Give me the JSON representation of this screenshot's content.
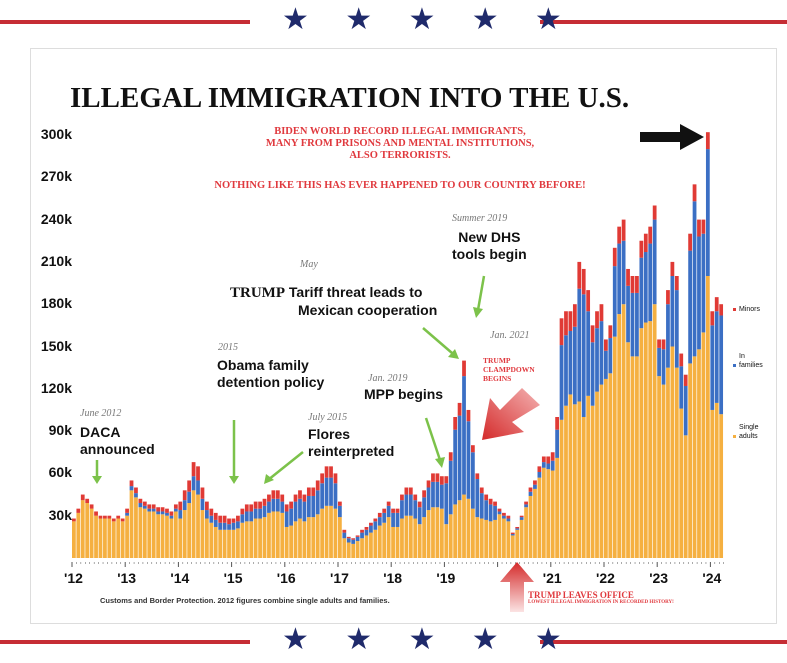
{
  "decor": {
    "stars_top": "★ ★ ★ ★ ★",
    "stars_bottom": "★ ★ ★ ★ ★",
    "star_color": "#1f2a6b",
    "stripe_color": "#c62d35"
  },
  "title": "ILLEGAL IMMIGRATION INTO THE U.S.",
  "callout": {
    "lines": [
      "BIDEN WORLD RECORD ILLEGAL IMMIGRANTS,",
      "MANY FROM PRISONS AND MENTAL INSTITUTIONS,",
      "ALSO TERRORISTS."
    ],
    "tagline": "NOTHING LIKE THIS HAS EVER HAPPENED TO OUR COUNTRY BEFORE!"
  },
  "annotations": {
    "daca": {
      "date": "June 2012",
      "text1": "DACA",
      "text2": "announced"
    },
    "obama": {
      "date": "2015",
      "text1": "Obama family",
      "text2": "detention policy"
    },
    "flores": {
      "date": "July 2015",
      "text1": "Flores",
      "text2": "reinterpreted"
    },
    "tariff": {
      "date": "May",
      "prefix": "TRUMP",
      "text1": "Tariff threat leads to",
      "text2": "Mexican cooperation"
    },
    "dhs": {
      "date": "Summer 2019",
      "text1": "New DHS",
      "text2": "tools begin"
    },
    "mpp": {
      "date": "Jan. 2019",
      "text1": "MPP begins"
    },
    "jan2021": {
      "date": "Jan. 2021"
    },
    "clampdown": {
      "l1": "TRUMP",
      "l2": "CLAMPDOWN",
      "l3": "BEGINS"
    },
    "leaves": {
      "l1": "TRUMP LEAVES OFFICE",
      "l2": "LOWEST ILLEGAL IMMIGRATION IN RECORDED HISTORY!"
    }
  },
  "source": "Customs and Border Protection. 2012 figures combine single adults and families.",
  "chart_data": {
    "type": "bar",
    "stacked": true,
    "title": "ILLEGAL IMMIGRATION INTO THE U.S.",
    "xlabel": "",
    "ylabel": "",
    "ylim": [
      0,
      300
    ],
    "y_unit": "thousands per month",
    "yticks": [
      30,
      60,
      90,
      120,
      150,
      180,
      210,
      240,
      270,
      300
    ],
    "ytick_labels": [
      "30k",
      "60k",
      "90k",
      "120k",
      "150k",
      "180k",
      "210k",
      "240k",
      "270k",
      "300k"
    ],
    "xtick_labels": [
      "'12",
      "'13",
      "'14",
      "'15",
      "'16",
      "'17",
      "'18",
      "'19",
      "'21",
      "'22",
      "'23",
      "'24"
    ],
    "xtick_years": [
      2012,
      2013,
      2014,
      2015,
      2016,
      2017,
      2018,
      2019,
      2021,
      2022,
      2023,
      2024
    ],
    "start": "2012-01",
    "grid": false,
    "legend_position": "right",
    "colors": {
      "single": "#f5b041",
      "families": "#3b6fc4",
      "minors": "#e03a35"
    },
    "series": [
      {
        "name": "Single adults",
        "key": "single",
        "values": [
          26,
          32,
          41,
          39,
          35,
          30,
          28,
          28,
          28,
          26,
          28,
          26,
          30,
          48,
          43,
          36,
          35,
          33,
          33,
          31,
          31,
          30,
          28,
          33,
          28,
          34,
          39,
          48,
          45,
          34,
          28,
          25,
          22,
          20,
          20,
          20,
          20,
          21,
          25,
          26,
          26,
          28,
          28,
          29,
          32,
          33,
          33,
          32,
          22,
          23,
          26,
          28,
          26,
          29,
          29,
          31,
          35,
          37,
          37,
          35,
          29,
          14,
          11,
          10,
          12,
          14,
          16,
          18,
          20,
          23,
          25,
          29,
          22,
          22,
          28,
          30,
          30,
          28,
          24,
          29,
          34,
          36,
          36,
          35,
          24,
          31,
          38,
          41,
          45,
          42,
          35,
          29,
          28,
          27,
          26,
          27,
          31,
          28,
          26,
          16,
          20,
          27,
          36,
          44,
          49,
          57,
          64,
          63,
          62,
          71,
          98,
          108,
          116,
          109,
          111,
          100,
          115,
          108,
          118,
          123,
          127,
          131,
          157,
          173,
          180,
          153,
          143,
          143,
          163,
          167,
          168,
          180,
          129,
          123,
          135,
          150,
          135,
          106,
          87,
          138,
          143,
          148,
          160,
          200,
          105,
          110,
          102
        ]
      },
      {
        "name": "In families",
        "key": "families",
        "values": [
          0,
          0,
          0,
          0,
          0,
          0,
          0,
          0,
          0,
          0,
          0,
          0,
          2,
          3,
          3,
          3,
          2,
          2,
          2,
          2,
          2,
          2,
          2,
          2,
          6,
          7,
          8,
          10,
          10,
          8,
          6,
          5,
          5,
          5,
          5,
          4,
          5,
          5,
          6,
          7,
          7,
          7,
          7,
          8,
          8,
          9,
          9,
          8,
          11,
          12,
          14,
          14,
          14,
          15,
          15,
          17,
          18,
          20,
          20,
          18,
          8,
          4,
          3,
          3,
          3,
          4,
          4,
          5,
          6,
          6,
          7,
          8,
          10,
          10,
          13,
          15,
          15,
          13,
          12,
          14,
          16,
          18,
          18,
          17,
          29,
          38,
          53,
          60,
          84,
          55,
          40,
          27,
          18,
          14,
          12,
          10,
          2,
          2,
          2,
          1,
          1,
          2,
          2,
          3,
          3,
          4,
          4,
          4,
          7,
          20,
          53,
          50,
          45,
          55,
          80,
          87,
          60,
          45,
          45,
          45,
          20,
          25,
          50,
          50,
          45,
          40,
          45,
          45,
          50,
          50,
          55,
          60,
          20,
          25,
          45,
          50,
          55,
          30,
          35,
          80,
          110,
          80,
          70,
          90,
          60,
          65,
          70
        ]
      },
      {
        "name": "Minors",
        "key": "minors",
        "values": [
          2,
          3,
          4,
          3,
          3,
          3,
          2,
          2,
          2,
          2,
          2,
          2,
          3,
          4,
          4,
          3,
          3,
          3,
          3,
          3,
          3,
          3,
          3,
          3,
          6,
          7,
          8,
          10,
          10,
          8,
          6,
          5,
          5,
          5,
          5,
          4,
          3,
          4,
          4,
          5,
          5,
          5,
          5,
          5,
          5,
          6,
          6,
          5,
          5,
          5,
          5,
          6,
          5,
          6,
          6,
          7,
          7,
          8,
          8,
          7,
          3,
          2,
          1,
          1,
          1,
          2,
          2,
          2,
          2,
          3,
          3,
          3,
          3,
          3,
          4,
          5,
          5,
          4,
          4,
          5,
          5,
          6,
          6,
          6,
          5,
          6,
          9,
          9,
          11,
          8,
          5,
          4,
          4,
          4,
          4,
          3,
          2,
          2,
          2,
          1,
          1,
          1,
          2,
          3,
          3,
          4,
          4,
          5,
          6,
          9,
          19,
          17,
          14,
          16,
          19,
          18,
          15,
          12,
          12,
          12,
          8,
          9,
          13,
          12,
          15,
          12,
          12,
          12,
          12,
          13,
          12,
          10,
          6,
          7,
          10,
          10,
          10,
          9,
          8,
          12,
          12,
          12,
          10,
          12,
          10,
          10,
          8
        ]
      }
    ],
    "legend": [
      {
        "key": "minors",
        "label": "Minors"
      },
      {
        "key": "families",
        "label1": "In",
        "label2": "families"
      },
      {
        "key": "single",
        "label1": "Single",
        "label2": "adults"
      }
    ]
  }
}
